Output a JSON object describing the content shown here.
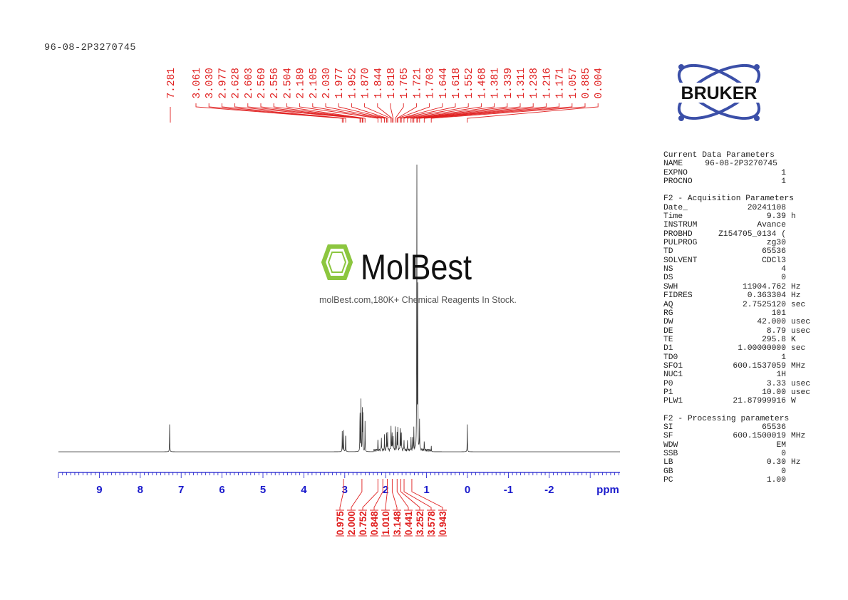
{
  "sample_name": "96-08-2P3270745",
  "logo_text": "BRUKER",
  "watermark": {
    "brand": "MolBest",
    "tagline": "molBest.com,180K+ Chemical Reagents In Stock."
  },
  "colors": {
    "spectrum": "#333333",
    "peak_labels": "#e02020",
    "axis": "#1a1acc",
    "bruker_blue": "#3b4fa8"
  },
  "parameters": {
    "sections": [
      {
        "title": "Current Data Parameters",
        "rows": [
          [
            "NAME",
            "96-08-2P3270745",
            ""
          ],
          [
            "EXPNO",
            "1",
            ""
          ],
          [
            "PROCNO",
            "1",
            ""
          ]
        ]
      },
      {
        "title": "F2 - Acquisition Parameters",
        "rows": [
          [
            "Date_",
            "20241108",
            ""
          ],
          [
            "Time",
            "9.39",
            "h"
          ],
          [
            "INSTRUM",
            "Avance",
            ""
          ],
          [
            "PROBHD",
            "Z154705_0134 (",
            ""
          ],
          [
            "PULPROG",
            "zg30",
            ""
          ],
          [
            "TD",
            "65536",
            ""
          ],
          [
            "SOLVENT",
            "CDCl3",
            ""
          ],
          [
            "NS",
            "4",
            ""
          ],
          [
            "DS",
            "0",
            ""
          ],
          [
            "SWH",
            "11904.762",
            "Hz"
          ],
          [
            "FIDRES",
            "0.363304",
            "Hz"
          ],
          [
            "AQ",
            "2.7525120",
            "sec"
          ],
          [
            "RG",
            "101",
            ""
          ],
          [
            "DW",
            "42.000",
            "usec"
          ],
          [
            "DE",
            "8.79",
            "usec"
          ],
          [
            "TE",
            "295.8",
            "K"
          ],
          [
            "D1",
            "1.00000000",
            "sec"
          ],
          [
            "TD0",
            "1",
            ""
          ],
          [
            "SFO1",
            "600.1537059",
            "MHz"
          ],
          [
            "NUC1",
            "1H",
            ""
          ],
          [
            "P0",
            "3.33",
            "usec"
          ],
          [
            "P1",
            "10.00",
            "usec"
          ],
          [
            "PLW1",
            "21.87999916",
            "W"
          ]
        ]
      },
      {
        "title": "F2 - Processing parameters",
        "rows": [
          [
            "SI",
            "65536",
            ""
          ],
          [
            "SF",
            "600.1500019",
            "MHz"
          ],
          [
            "WDW",
            "EM",
            ""
          ],
          [
            "SSB",
            "0",
            ""
          ],
          [
            "LB",
            "0.30",
            "Hz"
          ],
          [
            "GB",
            "0",
            ""
          ],
          [
            "PC",
            "1.00",
            ""
          ]
        ]
      }
    ]
  },
  "chart_data": {
    "type": "line",
    "xlabel": "ppm",
    "xlim": [
      10.0,
      -3.7
    ],
    "x_reversed": true,
    "xticks": [
      "9",
      "8",
      "7",
      "6",
      "5",
      "4",
      "3",
      "2",
      "1",
      "0",
      "-1",
      "-2"
    ],
    "grid": false,
    "peak_labels": [
      "7.281",
      "3.061",
      "3.030",
      "2.977",
      "2.628",
      "2.603",
      "2.569",
      "2.556",
      "2.504",
      "2.189",
      "2.105",
      "2.030",
      "1.977",
      "1.952",
      "1.870",
      "1.844",
      "1.818",
      "1.765",
      "1.721",
      "1.703",
      "1.644",
      "1.618",
      "1.552",
      "1.468",
      "1.381",
      "1.339",
      "1.311",
      "1.238",
      "1.216",
      "1.171",
      "1.057",
      "0.885",
      "0.004"
    ],
    "peak_relative_intensity": [
      10,
      7,
      8,
      7,
      15,
      20,
      14,
      12,
      10,
      4,
      5,
      5,
      6,
      6,
      9,
      7,
      6,
      8,
      6,
      7,
      9,
      8,
      4,
      3,
      4,
      5,
      7,
      100,
      55,
      10,
      3,
      2,
      9
    ],
    "integrals": [
      {
        "value": "0.975",
        "ppm": 3.03
      },
      {
        "value": "2.000",
        "ppm": 2.58
      },
      {
        "value": "0.752",
        "ppm": 2.19
      },
      {
        "value": "0.848",
        "ppm": 2.07
      },
      {
        "value": "1.010",
        "ppm": 1.96
      },
      {
        "value": "3.148",
        "ppm": 1.84
      },
      {
        "value": "0.441",
        "ppm": 1.72
      },
      {
        "value": "3.252",
        "ppm": 1.63
      },
      {
        "value": "3.578",
        "ppm": 1.55
      },
      {
        "value": "0.943",
        "ppm": 1.36
      }
    ]
  }
}
